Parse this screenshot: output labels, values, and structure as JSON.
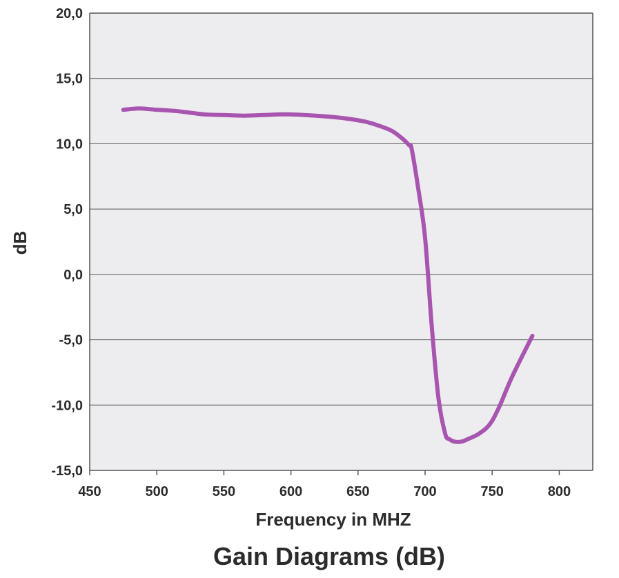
{
  "chart_data": {
    "type": "line",
    "title": "Gain Diagrams (dB)",
    "xlabel": "Frequency in MHZ",
    "ylabel": "dB",
    "xlim": [
      450,
      825
    ],
    "ylim": [
      -15,
      20
    ],
    "x_ticks": [
      "450",
      "500",
      "550",
      "600",
      "650",
      "700",
      "750",
      "800"
    ],
    "y_ticks": [
      "20,0",
      "15,0",
      "10,0",
      "5,0",
      "0,0",
      "-5,0",
      "-10,0",
      "-15,0"
    ],
    "grid": true,
    "legend": "none",
    "colors": {
      "line": "#a855b0",
      "plot_background": "#ededf0",
      "gridline": "#555555",
      "text": "#2b2b2b"
    },
    "series": [
      {
        "x": [
          475,
          487,
          500,
          515,
          535,
          550,
          565,
          580,
          595,
          610,
          625,
          640,
          655,
          665,
          675,
          683,
          688,
          690,
          695,
          700,
          705,
          710,
          715,
          718,
          722,
          727,
          732,
          740,
          748,
          755,
          765,
          780
        ],
        "y": [
          12.6,
          12.7,
          12.6,
          12.5,
          12.25,
          12.2,
          12.15,
          12.2,
          12.25,
          12.2,
          12.1,
          11.95,
          11.7,
          11.4,
          11.0,
          10.4,
          9.9,
          9.6,
          6.5,
          2.8,
          -4.0,
          -9.5,
          -12.2,
          -12.6,
          -12.8,
          -12.8,
          -12.6,
          -12.2,
          -11.5,
          -10.2,
          -7.8,
          -4.7
        ]
      }
    ]
  }
}
